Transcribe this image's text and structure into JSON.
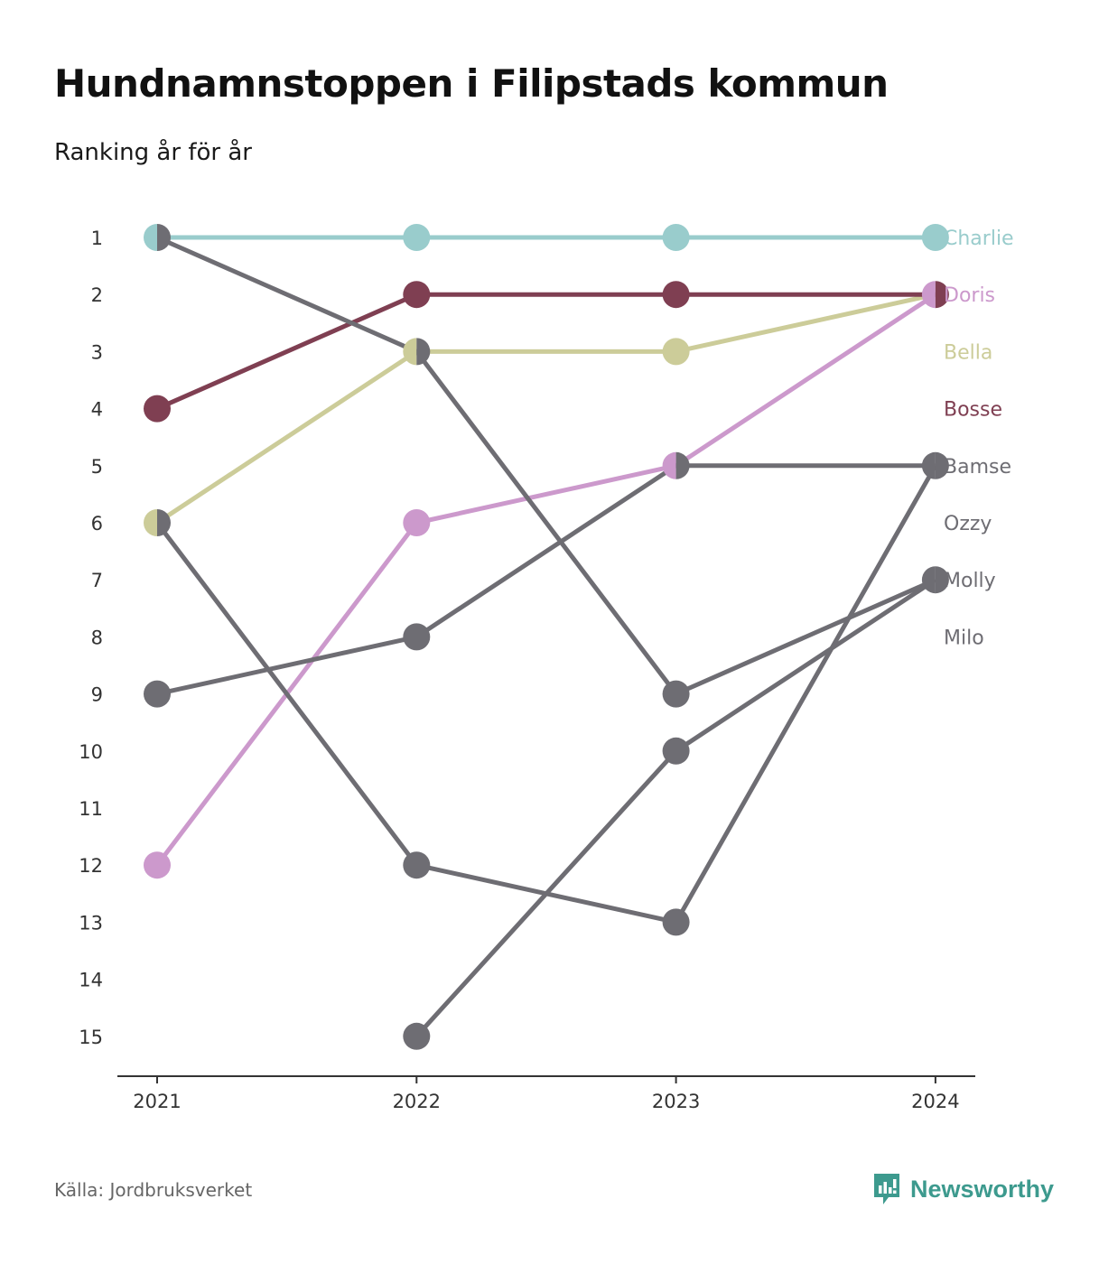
{
  "title": "Hundnamnstoppen i Filipstads kommun",
  "subtitle": "Ranking år för år",
  "source": "Källa: Jordbruksverket",
  "brand": {
    "name": "Newsworthy",
    "icon": "newsworthy-logo-icon",
    "color": "#3d9a8e"
  },
  "chart_data": {
    "type": "line",
    "subtype": "bump",
    "x": [
      "2021",
      "2022",
      "2023",
      "2024"
    ],
    "y_ticks": [
      1,
      2,
      3,
      4,
      5,
      6,
      7,
      8,
      9,
      10,
      11,
      12,
      13,
      14,
      15
    ],
    "ylim": [
      1,
      15
    ],
    "y_inverted": true,
    "grid": false,
    "series": [
      {
        "name": "Charlie",
        "color": "#99cccc",
        "values": [
          1,
          1,
          1,
          1
        ]
      },
      {
        "name": "Doris",
        "color": "#cc99cc",
        "values": [
          12,
          6,
          5,
          2
        ]
      },
      {
        "name": "Bella",
        "color": "#cccc99",
        "values": [
          6,
          3,
          3,
          2
        ]
      },
      {
        "name": "Bosse",
        "color": "#7f3f52",
        "values": [
          4,
          2,
          2,
          2
        ]
      },
      {
        "name": "Bamse",
        "color": "#6e6d73",
        "values": [
          9,
          8,
          5,
          5
        ]
      },
      {
        "name": "Ozzy",
        "color": "#6e6d73",
        "values": [
          1,
          3,
          9,
          7
        ]
      },
      {
        "name": "Molly",
        "color": "#6e6d73",
        "values": [
          null,
          15,
          10,
          7
        ]
      },
      {
        "name": "Milo",
        "color": "#6e6d73",
        "values": [
          6,
          12,
          13,
          5
        ]
      }
    ]
  }
}
